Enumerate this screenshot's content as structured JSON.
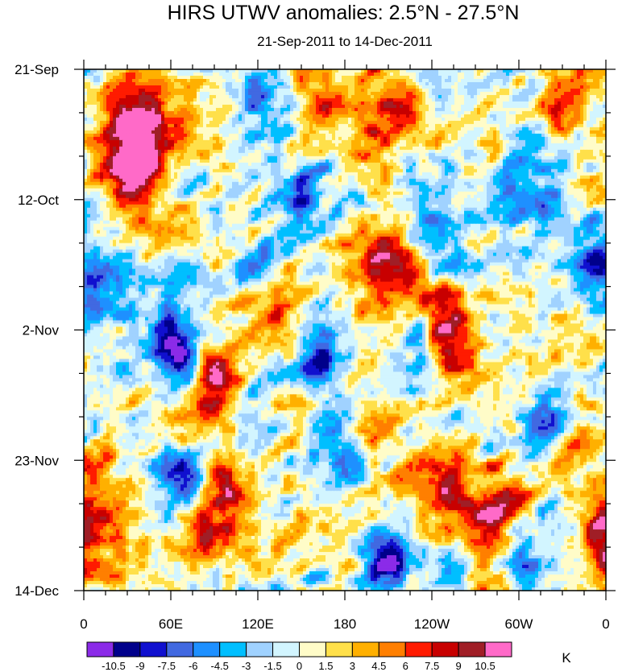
{
  "chart_data": {
    "type": "heatmap",
    "title": "HIRS UTWV anomalies: 2.5°N - 27.5°N",
    "subtitle": "21-Sep-2011 to 14-Dec-2011",
    "x_ticks": [
      {
        "lon": 0,
        "label": "0"
      },
      {
        "lon": 60,
        "label": "60E"
      },
      {
        "lon": 120,
        "label": "120E"
      },
      {
        "lon": 180,
        "label": "180"
      },
      {
        "lon": 240,
        "label": "120W"
      },
      {
        "lon": 300,
        "label": "60W"
      },
      {
        "lon": 360,
        "label": "0"
      }
    ],
    "xlim": [
      0,
      360
    ],
    "y_ticks": [
      {
        "day": 0,
        "label": "21-Sep"
      },
      {
        "day": 21,
        "label": "12-Oct"
      },
      {
        "day": 42,
        "label": "2-Nov"
      },
      {
        "day": 63,
        "label": "23-Nov"
      },
      {
        "day": 84,
        "label": "14-Dec"
      }
    ],
    "ylim_days": [
      0,
      84
    ],
    "colorbar": {
      "unit": "K",
      "levels": [
        "-10.5",
        "-9",
        "-7.5",
        "-6",
        "-4.5",
        "-3",
        "-1.5",
        "0",
        "1.5",
        "3",
        "4.5",
        "6",
        "7.5",
        "9",
        "10.5"
      ],
      "colors": [
        "#8b2be8",
        "#00008b",
        "#1010cf",
        "#4169e1",
        "#1e90ff",
        "#00bfff",
        "#a0d2ff",
        "#d2f5ff",
        "#fffcc8",
        "#ffe04a",
        "#ffb000",
        "#ff7f00",
        "#ff1b00",
        "#c80000",
        "#a01e26",
        "#ff6ac8"
      ]
    },
    "anomaly_centers": [
      {
        "lon": 40,
        "day": 9,
        "value": 9.5,
        "r": 14
      },
      {
        "lon": 38,
        "day": 18,
        "value": 10.0,
        "r": 14
      },
      {
        "lon": 32,
        "day": 13,
        "value": 8.5,
        "r": 18
      },
      {
        "lon": 207,
        "day": 32,
        "value": 9.0,
        "r": 16
      },
      {
        "lon": 255,
        "day": 45,
        "value": 11.0,
        "r": 12
      },
      {
        "lon": 240,
        "day": 39,
        "value": 8.5,
        "r": 14
      },
      {
        "lon": 93,
        "day": 49,
        "value": 10.8,
        "r": 10
      },
      {
        "lon": 85,
        "day": 55,
        "value": 7.0,
        "r": 14
      },
      {
        "lon": 100,
        "day": 67,
        "value": 11.0,
        "r": 10
      },
      {
        "lon": 85,
        "day": 73,
        "value": 9.5,
        "r": 12
      },
      {
        "lon": 256,
        "day": 67,
        "value": 10.5,
        "r": 14
      },
      {
        "lon": 287,
        "day": 71,
        "value": 10.5,
        "r": 13
      },
      {
        "lon": 278,
        "day": 77,
        "value": 9.0,
        "r": 12
      },
      {
        "lon": 8,
        "day": 68,
        "value": 6.5,
        "r": 16
      },
      {
        "lon": 12,
        "day": 78,
        "value": 7.5,
        "r": 14
      },
      {
        "lon": 170,
        "day": 4,
        "value": 6.5,
        "r": 18
      },
      {
        "lon": 210,
        "day": 8,
        "value": 7.0,
        "r": 15
      },
      {
        "lon": 335,
        "day": 6,
        "value": 6.0,
        "r": 18
      },
      {
        "lon": 128,
        "day": 38,
        "value": 7.5,
        "r": 12
      },
      {
        "lon": 200,
        "day": 60,
        "value": 5.5,
        "r": 18
      },
      {
        "lon": 150,
        "day": 58,
        "value": 5.0,
        "r": 14
      },
      {
        "lon": 330,
        "day": 60,
        "value": 6.0,
        "r": 14
      },
      {
        "lon": 356,
        "day": 75,
        "value": 6.5,
        "r": 10
      },
      {
        "lon": 62,
        "day": 43,
        "value": -10.8,
        "r": 10
      },
      {
        "lon": 66,
        "day": 47,
        "value": -9.0,
        "r": 10
      },
      {
        "lon": 70,
        "day": 67,
        "value": -10.5,
        "r": 10
      },
      {
        "lon": 120,
        "day": 32,
        "value": -8.0,
        "r": 10
      },
      {
        "lon": 165,
        "day": 47,
        "value": -9.0,
        "r": 12
      },
      {
        "lon": 178,
        "day": 62,
        "value": -8.0,
        "r": 14
      },
      {
        "lon": 318,
        "day": 57,
        "value": -10.0,
        "r": 10
      },
      {
        "lon": 303,
        "day": 79,
        "value": -9.5,
        "r": 12
      },
      {
        "lon": 210,
        "day": 80,
        "value": -10.0,
        "r": 12
      },
      {
        "lon": 232,
        "day": 43,
        "value": -9.5,
        "r": 9
      },
      {
        "lon": 150,
        "day": 20,
        "value": -6.0,
        "r": 14
      },
      {
        "lon": 310,
        "day": 20,
        "value": -6.5,
        "r": 16
      },
      {
        "lon": 125,
        "day": 6,
        "value": -6.0,
        "r": 16
      },
      {
        "lon": 10,
        "day": 35,
        "value": -5.0,
        "r": 16
      },
      {
        "lon": 350,
        "day": 30,
        "value": -6.0,
        "r": 14
      },
      {
        "lon": 240,
        "day": 27,
        "value": -5.5,
        "r": 14
      }
    ]
  }
}
